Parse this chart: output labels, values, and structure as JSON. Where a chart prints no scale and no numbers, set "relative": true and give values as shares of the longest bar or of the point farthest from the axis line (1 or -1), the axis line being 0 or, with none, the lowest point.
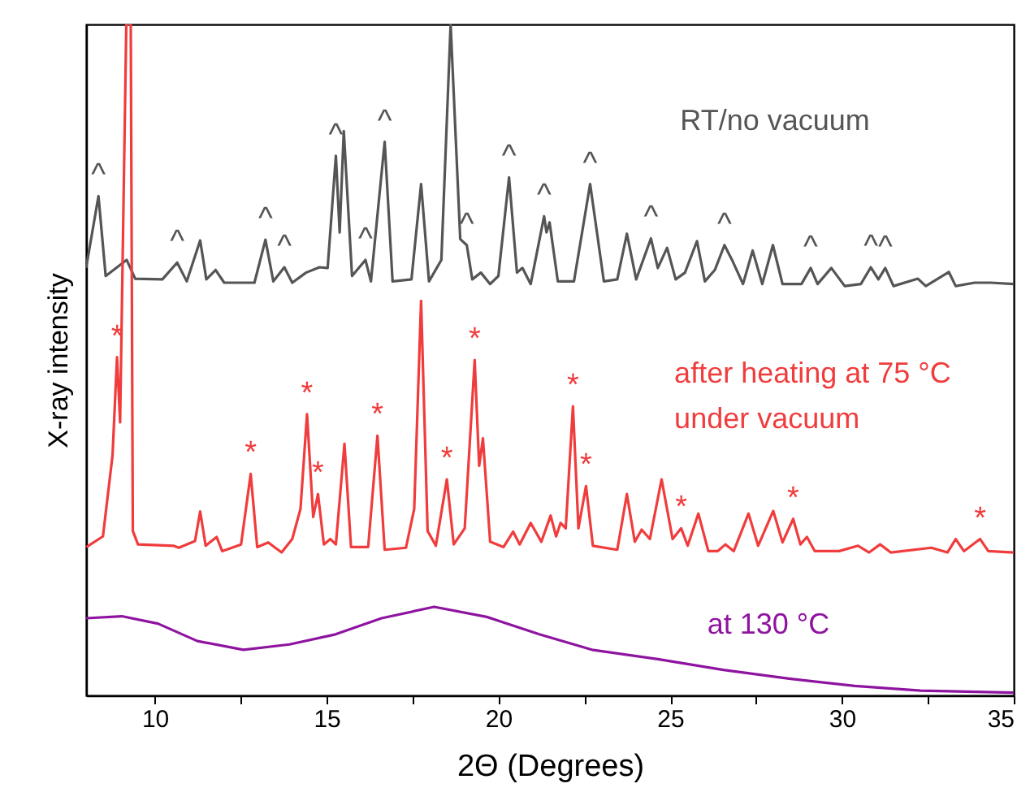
{
  "chart_data": {
    "type": "line",
    "relative": true,
    "xlabel": "2Θ (Degrees)",
    "ylabel": "X-ray intensity",
    "xlim": [
      8,
      35
    ],
    "xticks": [
      10,
      {
        "value": 12.5,
        "label": null
      },
      15,
      {
        "value": 17.5,
        "label": null
      },
      20,
      {
        "value": 22.5,
        "label": null
      },
      25,
      {
        "value": 27.5,
        "label": null
      },
      30,
      {
        "value": 32.5,
        "label": null
      },
      35
    ],
    "series": [
      {
        "name": "RT/no vacuum",
        "color": "#555555",
        "x": [
          8.0,
          8.36,
          8.57,
          9.18,
          9.43,
          10.22,
          10.65,
          10.93,
          11.32,
          11.5,
          11.77,
          12.02,
          12.9,
          13.22,
          13.45,
          13.77,
          14.0,
          14.4,
          14.79,
          15.03,
          15.27,
          15.38,
          15.5,
          15.74,
          16.13,
          16.29,
          16.69,
          16.92,
          17.47,
          17.75,
          17.98,
          18.34,
          18.61,
          18.89,
          19.08,
          19.24,
          19.49,
          19.76,
          20.0,
          20.31,
          20.54,
          20.7,
          20.94,
          21.33,
          21.4,
          21.49,
          21.73,
          22.2,
          22.67,
          23.07,
          23.46,
          23.74,
          24.01,
          24.44,
          24.64,
          24.91,
          25.16,
          25.43,
          25.78,
          26.01,
          26.3,
          26.58,
          26.8,
          27.12,
          27.4,
          27.68,
          27.99,
          28.27,
          28.82,
          29.09,
          29.29,
          29.69,
          30.08,
          30.55,
          30.84,
          31.06,
          31.26,
          31.5,
          32.21,
          32.44,
          33.11,
          33.31,
          33.86,
          34.33,
          35.0
        ],
        "values": [
          0.637,
          0.744,
          0.625,
          0.649,
          0.621,
          0.62,
          0.645,
          0.617,
          0.678,
          0.62,
          0.634,
          0.615,
          0.615,
          0.679,
          0.617,
          0.638,
          0.615,
          0.63,
          0.638,
          0.637,
          0.804,
          0.69,
          0.841,
          0.625,
          0.649,
          0.617,
          0.825,
          0.617,
          0.62,
          0.762,
          0.617,
          0.649,
          1.0,
          0.68,
          0.671,
          0.62,
          0.63,
          0.613,
          0.625,
          0.772,
          0.63,
          0.637,
          0.613,
          0.714,
          0.69,
          0.705,
          0.617,
          0.617,
          0.762,
          0.617,
          0.62,
          0.688,
          0.62,
          0.681,
          0.637,
          0.667,
          0.62,
          0.63,
          0.677,
          0.617,
          0.634,
          0.671,
          0.649,
          0.613,
          0.663,
          0.613,
          0.671,
          0.613,
          0.613,
          0.637,
          0.613,
          0.637,
          0.61,
          0.613,
          0.638,
          0.62,
          0.637,
          0.61,
          0.621,
          0.61,
          0.631,
          0.61,
          0.615,
          0.615,
          0.613
        ]
      },
      {
        "name": "after heating at 75 °C under vacuum",
        "color": "#f03c3c",
        "x": [
          8.01,
          8.49,
          8.77,
          8.9,
          8.99,
          9.17,
          9.3,
          9.36,
          9.51,
          10.54,
          10.7,
          11.17,
          11.32,
          11.48,
          11.8,
          11.96,
          12.51,
          12.79,
          12.98,
          13.3,
          13.69,
          14.0,
          14.24,
          14.43,
          14.61,
          14.75,
          14.92,
          15.11,
          15.27,
          15.52,
          15.71,
          16.21,
          16.48,
          16.69,
          17.31,
          17.55,
          17.75,
          17.94,
          18.18,
          18.5,
          18.7,
          19.02,
          19.31,
          19.44,
          19.55,
          19.76,
          20.15,
          20.43,
          20.62,
          20.94,
          21.25,
          21.52,
          21.68,
          21.81,
          21.96,
          22.17,
          22.33,
          22.55,
          22.75,
          23.46,
          23.74,
          23.97,
          24.17,
          24.41,
          24.75,
          25.07,
          25.32,
          25.51,
          25.82,
          26.11,
          26.38,
          26.61,
          26.85,
          27.28,
          27.56,
          28.0,
          28.27,
          28.58,
          28.79,
          28.98,
          29.21,
          29.92,
          30.47,
          30.79,
          31.11,
          31.42,
          32.6,
          33.07,
          33.31,
          33.55,
          34.02,
          34.26,
          35.0
        ],
        "values": [
          0.221,
          0.237,
          0.358,
          0.504,
          0.407,
          1.0,
          1.0,
          0.245,
          0.225,
          0.223,
          0.22,
          0.23,
          0.274,
          0.223,
          0.236,
          0.215,
          0.225,
          0.33,
          0.221,
          0.228,
          0.213,
          0.233,
          0.278,
          0.419,
          0.266,
          0.3,
          0.225,
          0.233,
          0.225,
          0.375,
          0.221,
          0.221,
          0.387,
          0.217,
          0.22,
          0.278,
          0.588,
          0.245,
          0.223,
          0.322,
          0.225,
          0.249,
          0.5,
          0.342,
          0.383,
          0.229,
          0.221,
          0.244,
          0.225,
          0.257,
          0.229,
          0.268,
          0.237,
          0.257,
          0.249,
          0.431,
          0.249,
          0.312,
          0.223,
          0.217,
          0.3,
          0.229,
          0.247,
          0.233,
          0.322,
          0.233,
          0.249,
          0.223,
          0.271,
          0.215,
          0.215,
          0.225,
          0.215,
          0.271,
          0.223,
          0.275,
          0.228,
          0.263,
          0.225,
          0.236,
          0.215,
          0.215,
          0.223,
          0.213,
          0.225,
          0.213,
          0.22,
          0.213,
          0.233,
          0.215,
          0.233,
          0.215,
          0.213
        ]
      },
      {
        "name": "at 130 °C",
        "color": "#8e14a0",
        "x": [
          8.0,
          9.04,
          10.09,
          11.24,
          12.58,
          13.92,
          15.26,
          16.6,
          18.13,
          19.66,
          21.19,
          22.72,
          24.64,
          26.55,
          28.46,
          30.38,
          32.29,
          35.0
        ],
        "values": [
          0.115,
          0.118,
          0.107,
          0.081,
          0.068,
          0.076,
          0.091,
          0.115,
          0.132,
          0.117,
          0.091,
          0.068,
          0.054,
          0.038,
          0.025,
          0.014,
          0.007,
          0.004
        ]
      }
    ],
    "annotations": [
      {
        "text": "^",
        "x": 8.36,
        "y": 0.744
      },
      {
        "text": "^",
        "x": 10.65,
        "y": 0.645
      },
      {
        "text": "^",
        "x": 13.22,
        "y": 0.679
      },
      {
        "text": "^",
        "x": 13.77,
        "y": 0.638
      },
      {
        "text": "^",
        "x": 15.27,
        "y": 0.804
      },
      {
        "text": "^",
        "x": 16.13,
        "y": 0.649
      },
      {
        "text": "^",
        "x": 16.69,
        "y": 0.825
      },
      {
        "text": "^",
        "x": 19.08,
        "y": 0.671
      },
      {
        "text": "^",
        "x": 20.31,
        "y": 0.772
      },
      {
        "text": "^",
        "x": 21.33,
        "y": 0.714
      },
      {
        "text": "^",
        "x": 22.67,
        "y": 0.762
      },
      {
        "text": "^",
        "x": 24.44,
        "y": 0.681
      },
      {
        "text": "^",
        "x": 26.58,
        "y": 0.671
      },
      {
        "text": "^",
        "x": 29.09,
        "y": 0.637
      },
      {
        "text": "^",
        "x": 30.84,
        "y": 0.638
      },
      {
        "text": "^",
        "x": 31.26,
        "y": 0.637
      },
      {
        "text": "*",
        "x": 8.9,
        "y": 0.504
      },
      {
        "text": "*",
        "x": 12.79,
        "y": 0.33
      },
      {
        "text": "*",
        "x": 14.43,
        "y": 0.419
      },
      {
        "text": "*",
        "x": 14.75,
        "y": 0.3
      },
      {
        "text": "*",
        "x": 16.48,
        "y": 0.387
      },
      {
        "text": "*",
        "x": 18.5,
        "y": 0.322
      },
      {
        "text": "*",
        "x": 19.31,
        "y": 0.5
      },
      {
        "text": "*",
        "x": 22.17,
        "y": 0.431
      },
      {
        "text": "*",
        "x": 22.55,
        "y": 0.312
      },
      {
        "text": "*",
        "x": 25.32,
        "y": 0.249
      },
      {
        "text": "*",
        "x": 28.58,
        "y": 0.263
      },
      {
        "text": "*",
        "x": 34.02,
        "y": 0.233
      }
    ]
  }
}
